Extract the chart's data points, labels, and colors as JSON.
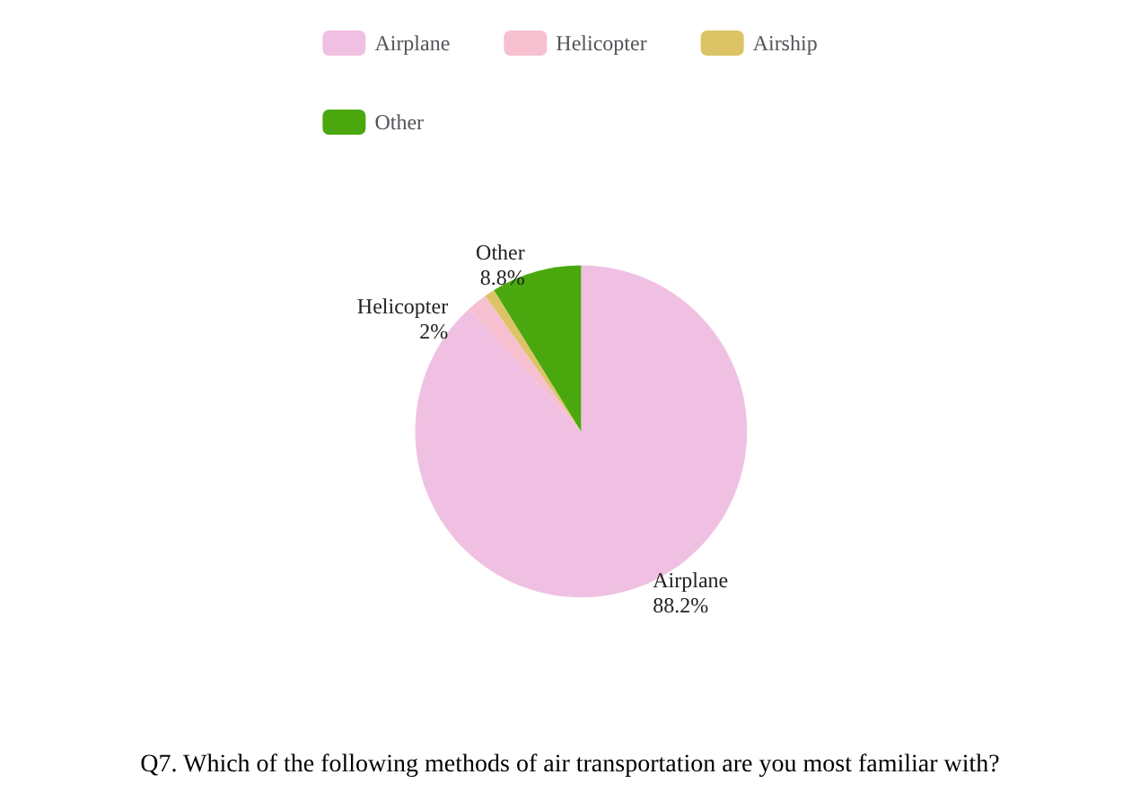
{
  "chart_data": {
    "type": "pie",
    "title": "Q7. Which of the following methods of air transportation are you most familiar with?",
    "categories": [
      "Airplane",
      "Helicopter",
      "Airship",
      "Other"
    ],
    "values": [
      88.2,
      2,
      1,
      8.8
    ],
    "colors": [
      "#f0c0e2",
      "#f6c0d0",
      "#dcc466",
      "#4aa80e"
    ],
    "value_labels": [
      "88.2%",
      "2%",
      null,
      "8.8%"
    ],
    "legend": "top"
  }
}
